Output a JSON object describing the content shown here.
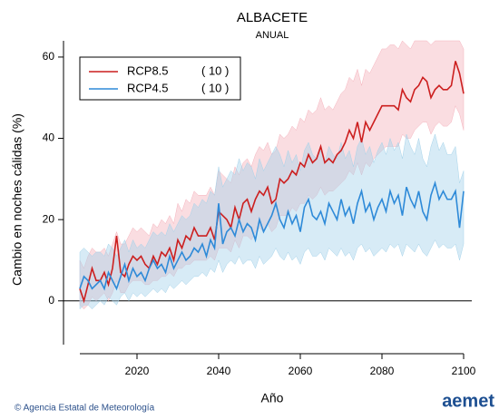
{
  "chart_data": {
    "type": "line",
    "title": "ALBACETE",
    "subtitle": "ANUAL",
    "x_label": "Año",
    "y_label": "Cambio en noches cálidas (%)",
    "footer": "© Agencia Estatal de Meteorología",
    "logo": "aemet",
    "x": [
      2006,
      2007,
      2008,
      2009,
      2010,
      2011,
      2012,
      2013,
      2014,
      2015,
      2016,
      2017,
      2018,
      2019,
      2020,
      2021,
      2022,
      2023,
      2024,
      2025,
      2026,
      2027,
      2028,
      2029,
      2030,
      2031,
      2032,
      2033,
      2034,
      2035,
      2036,
      2037,
      2038,
      2039,
      2040,
      2041,
      2042,
      2043,
      2044,
      2045,
      2046,
      2047,
      2048,
      2049,
      2050,
      2051,
      2052,
      2053,
      2054,
      2055,
      2056,
      2057,
      2058,
      2059,
      2060,
      2061,
      2062,
      2063,
      2064,
      2065,
      2066,
      2067,
      2068,
      2069,
      2070,
      2071,
      2072,
      2073,
      2074,
      2075,
      2076,
      2077,
      2078,
      2079,
      2080,
      2081,
      2082,
      2083,
      2084,
      2085,
      2086,
      2087,
      2088,
      2089,
      2090,
      2091,
      2092,
      2093,
      2094,
      2095,
      2096,
      2097,
      2098,
      2099,
      2100
    ],
    "xlim": [
      2002,
      2102
    ],
    "xticks": [
      2020,
      2040,
      2060,
      2080,
      2100
    ],
    "ylim": [
      -13,
      64
    ],
    "yticks": [
      0,
      20,
      40,
      60
    ],
    "legend": "top-left",
    "series": [
      {
        "name": "RCP8.5",
        "count_label": "( 10 )",
        "color": "#cc1f1f",
        "band_color": "#f5b3bd",
        "values": [
          3,
          0,
          4,
          8,
          5,
          5,
          7,
          4,
          8,
          16,
          7,
          6,
          9,
          11,
          10,
          11,
          9,
          8,
          11,
          9,
          12,
          11,
          13,
          10,
          15,
          13,
          16,
          15,
          18,
          16,
          16,
          16,
          18,
          15,
          22,
          21,
          20,
          18,
          23,
          20,
          24,
          25,
          22,
          25,
          27,
          26,
          28,
          24,
          25,
          30,
          29,
          30,
          32,
          31,
          34,
          33,
          36,
          34,
          35,
          38,
          34,
          35,
          34,
          36,
          37,
          39,
          42,
          40,
          44,
          39,
          44,
          42,
          44,
          46,
          48,
          48,
          48,
          48,
          47,
          52,
          50,
          49,
          52,
          53,
          55,
          54,
          50,
          52,
          53,
          52,
          52,
          53,
          59,
          56,
          51
        ],
        "low": [
          -1,
          -2,
          -1,
          1,
          0,
          1,
          2,
          0,
          2,
          5,
          2,
          2,
          4,
          5,
          5,
          5,
          4,
          4,
          5,
          5,
          6,
          6,
          7,
          6,
          8,
          8,
          9,
          9,
          10,
          10,
          10,
          10,
          11,
          10,
          13,
          13,
          13,
          12,
          15,
          13,
          16,
          16,
          15,
          17,
          18,
          17,
          19,
          17,
          18,
          21,
          21,
          21,
          23,
          22,
          24,
          24,
          26,
          25,
          26,
          28,
          26,
          27,
          27,
          28,
          29,
          30,
          32,
          31,
          34,
          31,
          34,
          33,
          35,
          36,
          37,
          38,
          38,
          38,
          38,
          41,
          40,
          40,
          42,
          43,
          44,
          44,
          41,
          43,
          44,
          43,
          43,
          44,
          48,
          46,
          42
        ],
        "high": [
          10,
          8,
          11,
          13,
          12,
          12,
          13,
          11,
          14,
          17,
          14,
          14,
          16,
          18,
          17,
          18,
          17,
          16,
          19,
          18,
          20,
          19,
          21,
          19,
          24,
          22,
          25,
          24,
          27,
          26,
          26,
          26,
          28,
          26,
          32,
          31,
          30,
          29,
          33,
          31,
          34,
          35,
          33,
          36,
          38,
          37,
          39,
          36,
          37,
          41,
          40,
          41,
          43,
          42,
          45,
          44,
          47,
          46,
          47,
          50,
          47,
          48,
          47,
          49,
          51,
          52,
          55,
          54,
          57,
          53,
          57,
          56,
          58,
          60,
          62,
          62,
          63,
          63,
          62,
          64,
          63,
          62,
          64,
          64,
          64,
          64,
          63,
          64,
          64,
          64,
          64,
          64,
          64,
          64,
          62
        ]
      },
      {
        "name": "RCP4.5",
        "count_label": "( 10 )",
        "color": "#2e8ad8",
        "band_color": "#a6d3ea",
        "values": [
          3,
          6,
          5,
          3,
          4,
          5,
          3,
          7,
          5,
          3,
          6,
          9,
          5,
          8,
          6,
          7,
          5,
          8,
          10,
          8,
          9,
          7,
          11,
          8,
          10,
          12,
          10,
          11,
          13,
          12,
          14,
          11,
          15,
          13,
          24,
          14,
          17,
          18,
          16,
          20,
          17,
          19,
          18,
          15,
          20,
          17,
          19,
          21,
          24,
          20,
          18,
          22,
          19,
          21,
          17,
          23,
          25,
          21,
          20,
          22,
          19,
          24,
          22,
          20,
          25,
          21,
          23,
          19,
          24,
          27,
          22,
          24,
          20,
          23,
          25,
          22,
          27,
          24,
          26,
          21,
          28,
          25,
          23,
          27,
          22,
          20,
          26,
          29,
          25,
          27,
          25,
          25,
          27,
          18,
          27
        ],
        "low": [
          -2,
          -1,
          -1,
          -2,
          -1,
          0,
          -1,
          1,
          0,
          -1,
          1,
          2,
          0,
          2,
          1,
          2,
          1,
          2,
          3,
          2,
          3,
          2,
          4,
          3,
          4,
          5,
          4,
          5,
          6,
          6,
          7,
          6,
          8,
          7,
          10,
          7,
          9,
          10,
          9,
          11,
          9,
          10,
          10,
          8,
          11,
          9,
          10,
          11,
          13,
          11,
          10,
          12,
          10,
          11,
          9,
          12,
          13,
          11,
          11,
          12,
          10,
          13,
          12,
          11,
          13,
          11,
          12,
          10,
          13,
          14,
          12,
          13,
          11,
          12,
          13,
          12,
          14,
          13,
          14,
          11,
          14,
          13,
          12,
          14,
          12,
          11,
          13,
          15,
          13,
          14,
          13,
          13,
          14,
          10,
          14
        ],
        "high": [
          12,
          13,
          12,
          11,
          12,
          12,
          11,
          14,
          13,
          11,
          13,
          15,
          12,
          15,
          13,
          14,
          13,
          15,
          17,
          16,
          17,
          16,
          19,
          17,
          19,
          21,
          20,
          21,
          24,
          23,
          25,
          24,
          27,
          26,
          33,
          28,
          30,
          32,
          31,
          35,
          32,
          34,
          33,
          30,
          35,
          32,
          34,
          36,
          38,
          36,
          33,
          37,
          34,
          36,
          32,
          37,
          39,
          36,
          35,
          37,
          34,
          38,
          36,
          35,
          39,
          35,
          37,
          33,
          38,
          40,
          36,
          38,
          34,
          37,
          39,
          36,
          40,
          37,
          39,
          35,
          41,
          38,
          36,
          40,
          35,
          33,
          38,
          41,
          37,
          39,
          36,
          36,
          38,
          29,
          32
        ]
      }
    ]
  }
}
